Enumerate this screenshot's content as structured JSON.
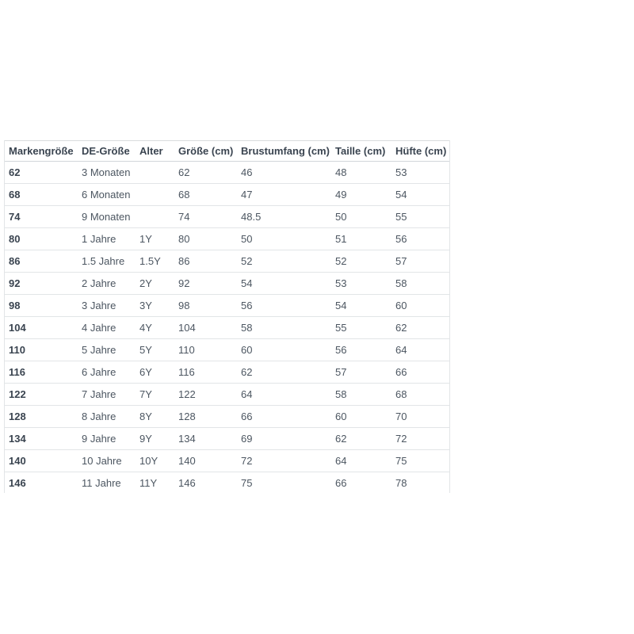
{
  "table": {
    "columns": [
      {
        "label": "Markengröße"
      },
      {
        "label": "DE-Größe"
      },
      {
        "label": "Alter"
      },
      {
        "label": "Größe (cm)"
      },
      {
        "label": "Brustumfang (cm)"
      },
      {
        "label": "Taille (cm)"
      },
      {
        "label": "Hüfte (cm)"
      }
    ],
    "rows": [
      [
        "62",
        "3 Monaten",
        "",
        "62",
        "46",
        "48",
        "53"
      ],
      [
        "68",
        "6 Monaten",
        "",
        "68",
        "47",
        "49",
        "54"
      ],
      [
        "74",
        "9 Monaten",
        "",
        "74",
        "48.5",
        "50",
        "55"
      ],
      [
        "80",
        "1 Jahre",
        "1Y",
        "80",
        "50",
        "51",
        "56"
      ],
      [
        "86",
        "1.5 Jahre",
        "1.5Y",
        "86",
        "52",
        "52",
        "57"
      ],
      [
        "92",
        "2 Jahre",
        "2Y",
        "92",
        "54",
        "53",
        "58"
      ],
      [
        "98",
        "3 Jahre",
        "3Y",
        "98",
        "56",
        "54",
        "60"
      ],
      [
        "104",
        "4 Jahre",
        "4Y",
        "104",
        "58",
        "55",
        "62"
      ],
      [
        "110",
        "5 Jahre",
        "5Y",
        "110",
        "60",
        "56",
        "64"
      ],
      [
        "116",
        "6 Jahre",
        "6Y",
        "116",
        "62",
        "57",
        "66"
      ],
      [
        "122",
        "7 Jahre",
        "7Y",
        "122",
        "64",
        "58",
        "68"
      ],
      [
        "128",
        "8 Jahre",
        "8Y",
        "128",
        "66",
        "60",
        "70"
      ],
      [
        "134",
        "9 Jahre",
        "9Y",
        "134",
        "69",
        "62",
        "72"
      ],
      [
        "140",
        "10 Jahre",
        "10Y",
        "140",
        "72",
        "64",
        "75"
      ],
      [
        "146",
        "11 Jahre",
        "11Y",
        "146",
        "75",
        "66",
        "78"
      ]
    ],
    "colors": {
      "background": "#ffffff",
      "header_text": "#3a4450",
      "body_text": "#4c5661",
      "row_border": "#e2e5e7",
      "outer_border": "#d9dcde",
      "header_underline": "#d2d6da"
    }
  }
}
